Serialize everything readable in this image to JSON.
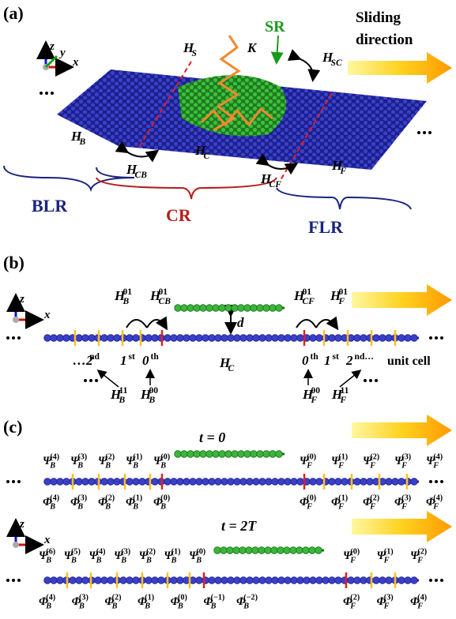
{
  "panel_a": {
    "label": "(a)",
    "axes": [
      "z",
      "y",
      "x"
    ],
    "sr": "SR",
    "sliding": [
      "Sliding",
      "direction"
    ],
    "terms": [
      {
        "base": "H",
        "sub": "S"
      },
      {
        "base": "K"
      },
      {
        "base": "H",
        "sub": "SC"
      },
      {
        "base": "H",
        "sub": "B"
      },
      {
        "base": "H",
        "sub": "CB"
      },
      {
        "base": "H",
        "sub": "C"
      },
      {
        "base": "H",
        "sub": "CF"
      },
      {
        "base": "H",
        "sub": "F"
      }
    ],
    "regions": [
      "BLR",
      "CR",
      "FLR"
    ]
  },
  "panel_b": {
    "label": "(b)",
    "axes": [
      "z",
      "x"
    ],
    "top_terms": [
      {
        "base": "H",
        "sub": "B",
        "sup": "01"
      },
      {
        "base": "H",
        "sub": "CB",
        "sup": "01"
      },
      {
        "base": "H",
        "sub": "CF",
        "sup": "01"
      },
      {
        "base": "H",
        "sub": "F",
        "sup": "01"
      }
    ],
    "gap": "d",
    "center": {
      "base": "H",
      "sub": "C"
    },
    "left_cells": [
      {
        "base": "…2",
        "sup": "nd"
      },
      {
        "base": "1",
        "sup": "st"
      },
      {
        "base": "0",
        "sup": "th"
      }
    ],
    "right_cells": [
      {
        "base": "0",
        "sup": "th"
      },
      {
        "base": "1",
        "sup": "st"
      },
      {
        "base": "2",
        "sup": "nd…"
      }
    ],
    "unit_cell": "unit cell",
    "bottom_terms": [
      {
        "base": "H",
        "sub": "B",
        "sup": "11"
      },
      {
        "base": "H",
        "sub": "B",
        "sup": "00"
      },
      {
        "base": "H",
        "sub": "F",
        "sup": "00"
      },
      {
        "base": "H",
        "sub": "F",
        "sup": "11"
      }
    ]
  },
  "panel_c": {
    "label": "(c)",
    "axes": [
      "z",
      "x"
    ],
    "rows": [
      {
        "time": "t = 0",
        "psi_left": [
          {
            "base": "Ψ",
            "sub": "B",
            "sup": "(4)"
          },
          {
            "base": "Ψ",
            "sub": "B",
            "sup": "(3)"
          },
          {
            "base": "Ψ",
            "sub": "B",
            "sup": "(2)"
          },
          {
            "base": "Ψ",
            "sub": "B",
            "sup": "(1)"
          },
          {
            "base": "Ψ",
            "sub": "B",
            "sup": "(0)"
          }
        ],
        "psi_right": [
          {
            "base": "Ψ",
            "sub": "F",
            "sup": "(0)"
          },
          {
            "base": "Ψ",
            "sub": "F",
            "sup": "(1)"
          },
          {
            "base": "Ψ",
            "sub": "F",
            "sup": "(2)"
          },
          {
            "base": "Ψ",
            "sub": "F",
            "sup": "(3)"
          },
          {
            "base": "Ψ",
            "sub": "F",
            "sup": "(4)"
          }
        ],
        "phi_left": [
          {
            "base": "Φ",
            "sub": "B",
            "sup": "(4)"
          },
          {
            "base": "Φ",
            "sub": "B",
            "sup": "(3)"
          },
          {
            "base": "Φ",
            "sub": "B",
            "sup": "(2)"
          },
          {
            "base": "Φ",
            "sub": "B",
            "sup": "(1)"
          },
          {
            "base": "Φ",
            "sub": "B",
            "sup": "(0)"
          }
        ],
        "phi_right": [
          {
            "base": "Φ",
            "sub": "F",
            "sup": "(0)"
          },
          {
            "base": "Φ",
            "sub": "F",
            "sup": "(1)"
          },
          {
            "base": "Φ",
            "sub": "F",
            "sup": "(2)"
          },
          {
            "base": "Φ",
            "sub": "F",
            "sup": "(3)"
          },
          {
            "base": "Φ",
            "sub": "F",
            "sup": "(4)"
          }
        ]
      },
      {
        "time": "t = 2T",
        "psi_left": [
          {
            "base": "Ψ",
            "sub": "B",
            "sup": "(6)"
          },
          {
            "base": "Ψ",
            "sub": "B",
            "sup": "(5)"
          },
          {
            "base": "Ψ",
            "sub": "B",
            "sup": "(4)"
          },
          {
            "base": "Ψ",
            "sub": "B",
            "sup": "(3)"
          },
          {
            "base": "Ψ",
            "sub": "B",
            "sup": "(2)"
          },
          {
            "base": "Ψ",
            "sub": "B",
            "sup": "(1)"
          },
          {
            "base": "Ψ",
            "sub": "B",
            "sup": "(0)"
          }
        ],
        "psi_right": [
          {
            "base": "Ψ",
            "sub": "F",
            "sup": "(0)"
          },
          {
            "base": "Ψ",
            "sub": "F",
            "sup": "(1)"
          },
          {
            "base": "Ψ",
            "sub": "F",
            "sup": "(2)"
          }
        ],
        "phi_left": [
          {
            "base": "Φ",
            "sub": "B",
            "sup": "(4)"
          },
          {
            "base": "Φ",
            "sub": "B",
            "sup": "(3)"
          },
          {
            "base": "Φ",
            "sub": "B",
            "sup": "(2)"
          },
          {
            "base": "Φ",
            "sub": "B",
            "sup": "(1)"
          },
          {
            "base": "Φ",
            "sub": "B",
            "sup": "(0)"
          },
          {
            "base": "Φ",
            "sub": "B",
            "sup": "(−1)"
          },
          {
            "base": "Φ",
            "sub": "B",
            "sup": "(−2)"
          }
        ],
        "phi_right": [
          {
            "base": "Φ",
            "sub": "F",
            "sup": "(2)"
          },
          {
            "base": "Φ",
            "sub": "F",
            "sup": "(3)"
          },
          {
            "base": "Φ",
            "sub": "F",
            "sup": "(4)"
          }
        ]
      }
    ]
  }
}
